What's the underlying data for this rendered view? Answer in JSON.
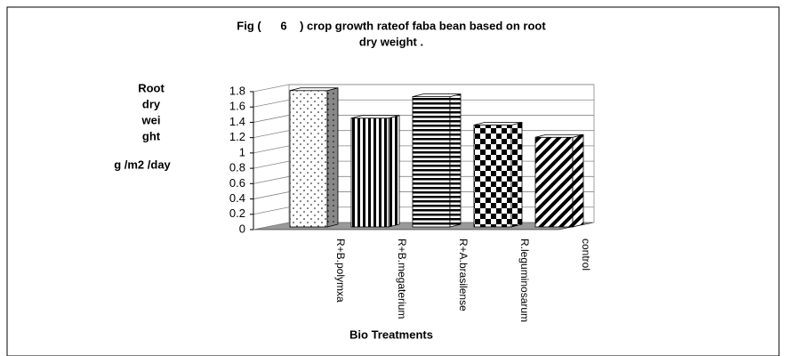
{
  "chart_data": {
    "type": "bar",
    "title": [
      "Fig (      6    ) crop growth rateof faba bean based on root",
      "dry weight ."
    ],
    "ylabel": [
      "Root",
      "dry",
      "wei",
      "ght"
    ],
    "yunit": "g /m2 /day",
    "xlabel": "Bio Treatments",
    "categories": [
      "R+B.polymxa",
      "R+B.megaterium",
      "R+A.brasilense",
      "R.leguminosarum",
      "control"
    ],
    "values": [
      1.78,
      1.42,
      1.7,
      1.33,
      1.17
    ],
    "ylim": [
      0,
      1.8
    ],
    "yticks": [
      0,
      0.2,
      0.4,
      0.6,
      0.8,
      1,
      1.2,
      1.4,
      1.6,
      1.8
    ],
    "grid": true
  }
}
